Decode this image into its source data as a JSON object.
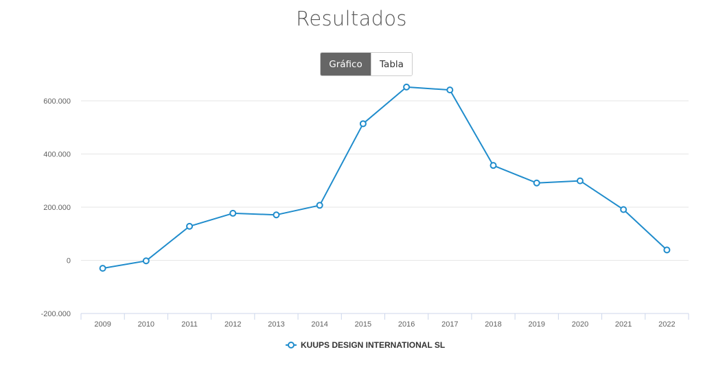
{
  "header": {
    "title": "Resultados"
  },
  "view_toggle": {
    "chart_label": "Gráfico",
    "table_label": "Tabla",
    "active": "chart"
  },
  "colors": {
    "series": "#1f8ccc",
    "grid": "#e6e6e6",
    "axis_text": "#606060",
    "active_toggle": "#666666"
  },
  "chart_data": {
    "type": "line",
    "title": "Resultados",
    "xlabel": "",
    "ylabel": "",
    "categories": [
      "2009",
      "2010",
      "2011",
      "2012",
      "2013",
      "2014",
      "2015",
      "2016",
      "2017",
      "2018",
      "2019",
      "2020",
      "2021",
      "2022"
    ],
    "series": [
      {
        "name": "KUUPS DESIGN INTERNATIONAL SL",
        "values": [
          -30000,
          -2000,
          128000,
          177000,
          171000,
          207000,
          514000,
          652000,
          641000,
          357000,
          291000,
          299000,
          191000,
          39000
        ]
      }
    ],
    "ylim": [
      -200000,
      600000
    ],
    "y_ticks": [
      {
        "value": -200000,
        "label": "-200.000"
      },
      {
        "value": 0,
        "label": "0"
      },
      {
        "value": 200000,
        "label": "200.000"
      },
      {
        "value": 400000,
        "label": "400.000"
      },
      {
        "value": 600000,
        "label": "600.000"
      }
    ],
    "grid": true,
    "legend_position": "bottom-center"
  }
}
